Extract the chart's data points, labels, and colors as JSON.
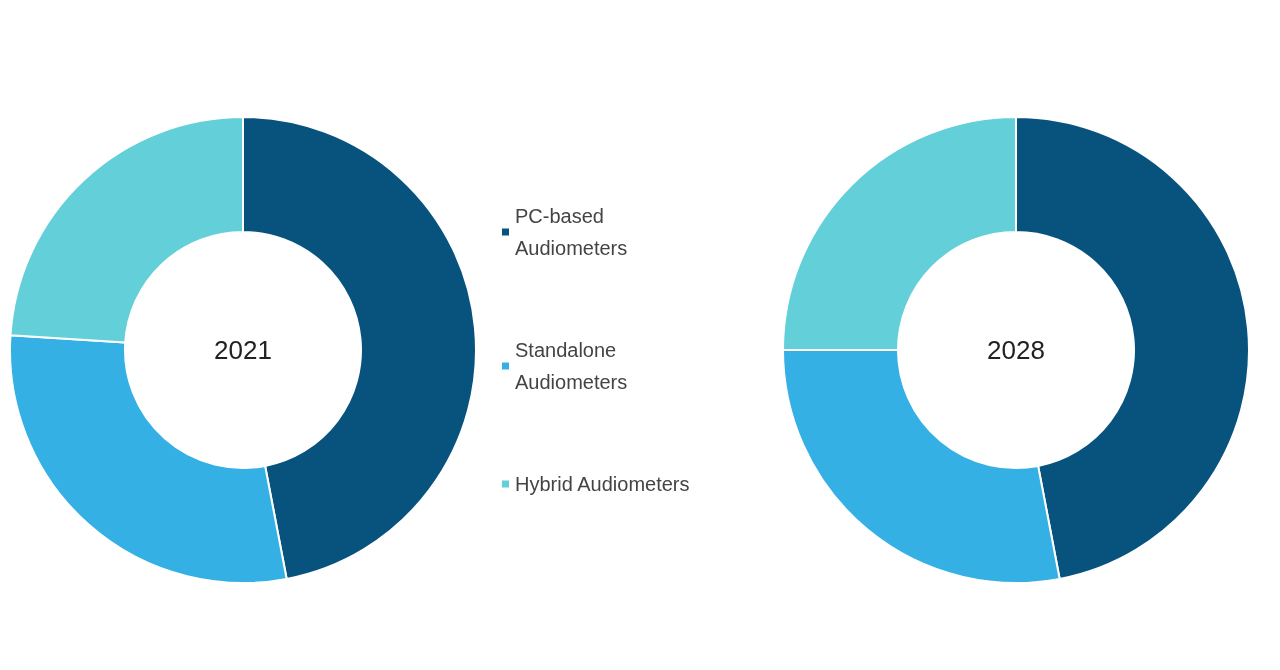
{
  "chart_data": {
    "type": "donut",
    "categories": [
      "PC-based Audiometers",
      "Standalone Audiometers",
      "Hybrid Audiometers"
    ],
    "colors": [
      "#08527e",
      "#35b0e4",
      "#63cfd9"
    ],
    "legend": "center",
    "series": [
      {
        "name": "2021",
        "values": [
          47,
          29,
          24
        ]
      },
      {
        "name": "2028",
        "values": [
          47,
          28,
          25
        ]
      }
    ]
  }
}
